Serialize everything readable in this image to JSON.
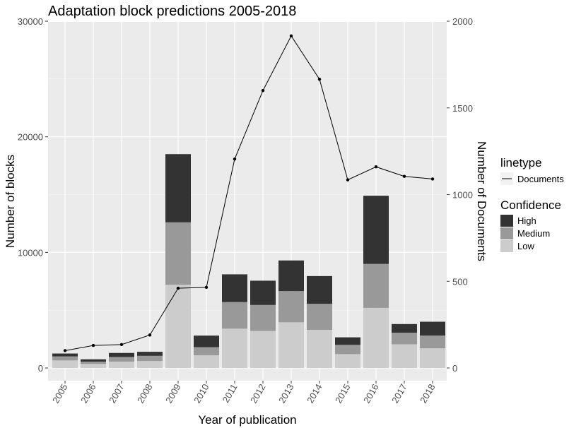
{
  "chart_data": {
    "type": "bar",
    "title": "Adaptation block predictions 2005-2018",
    "xlabel": "Year of publication",
    "ylabel": "Number of blocks",
    "y2label": "Number of Documents",
    "ylim": [
      0,
      30000
    ],
    "y2lim": [
      0,
      2000
    ],
    "yticks": [
      "0",
      "10000",
      "20000",
      "30000"
    ],
    "y2ticks": [
      "0",
      "500",
      "1000",
      "1500",
      "2000"
    ],
    "grid": true,
    "stacked": true,
    "categories": [
      "2005",
      "2006",
      "2007",
      "2008",
      "2009",
      "2010",
      "2011",
      "2012",
      "2013",
      "2014",
      "2015",
      "2016",
      "2017",
      "2018"
    ],
    "series": [
      {
        "name": "Low",
        "color": "#cccccc",
        "values": [
          650,
          350,
          550,
          600,
          7200,
          1100,
          3400,
          3200,
          3950,
          3300,
          1200,
          5200,
          2050,
          1700
        ]
      },
      {
        "name": "Medium",
        "color": "#999999",
        "values": [
          350,
          200,
          400,
          450,
          5400,
          700,
          2300,
          2250,
          2700,
          2250,
          800,
          3800,
          1000,
          1100
        ]
      },
      {
        "name": "High",
        "color": "#333333",
        "values": [
          250,
          200,
          350,
          350,
          5900,
          1000,
          2400,
          2100,
          2650,
          2400,
          650,
          5900,
          750,
          1200
        ]
      }
    ],
    "line": {
      "name": "Documents",
      "axis": "right",
      "values": [
        100,
        130,
        135,
        190,
        460,
        465,
        1205,
        1600,
        1915,
        1665,
        1085,
        1160,
        1105,
        1090
      ]
    },
    "legend": {
      "placement": "right",
      "linetype_title": "linetype",
      "confidence_title": "Confidence",
      "confidence_order": [
        "High",
        "Medium",
        "Low"
      ]
    }
  }
}
